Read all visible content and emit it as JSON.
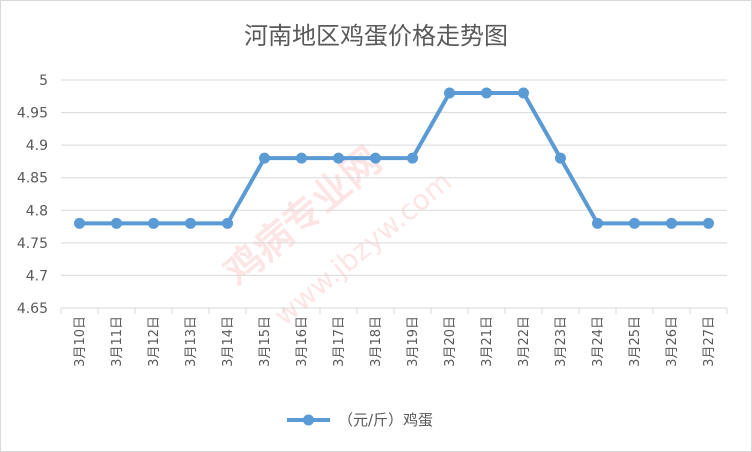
{
  "chart_data": {
    "type": "line",
    "title": "河南地区鸡蛋价格走势图",
    "categories": [
      "3月10日",
      "3月11日",
      "3月12日",
      "3月13日",
      "3月14日",
      "3月15日",
      "3月16日",
      "3月17日",
      "3月18日",
      "3月19日",
      "3月20日",
      "3月21日",
      "3月22日",
      "3月23日",
      "3月24日",
      "3月25日",
      "3月26日",
      "3月27日"
    ],
    "series": [
      {
        "name": "（元/斤）鸡蛋",
        "color": "#5b9bd5",
        "values": [
          4.78,
          4.78,
          4.78,
          4.78,
          4.78,
          4.88,
          4.88,
          4.88,
          4.88,
          4.88,
          4.98,
          4.98,
          4.98,
          4.88,
          4.78,
          4.78,
          4.78,
          4.78
        ]
      }
    ],
    "ylim": [
      4.65,
      5
    ],
    "yticks": [
      "4.65",
      "4.7",
      "4.75",
      "4.8",
      "4.85",
      "4.9",
      "4.95",
      "5"
    ],
    "grid": true,
    "legend": "bottom"
  },
  "watermark": {
    "text": "鸡病专业网",
    "url": "www.jbzyw.com",
    "color": "#e8302a"
  }
}
